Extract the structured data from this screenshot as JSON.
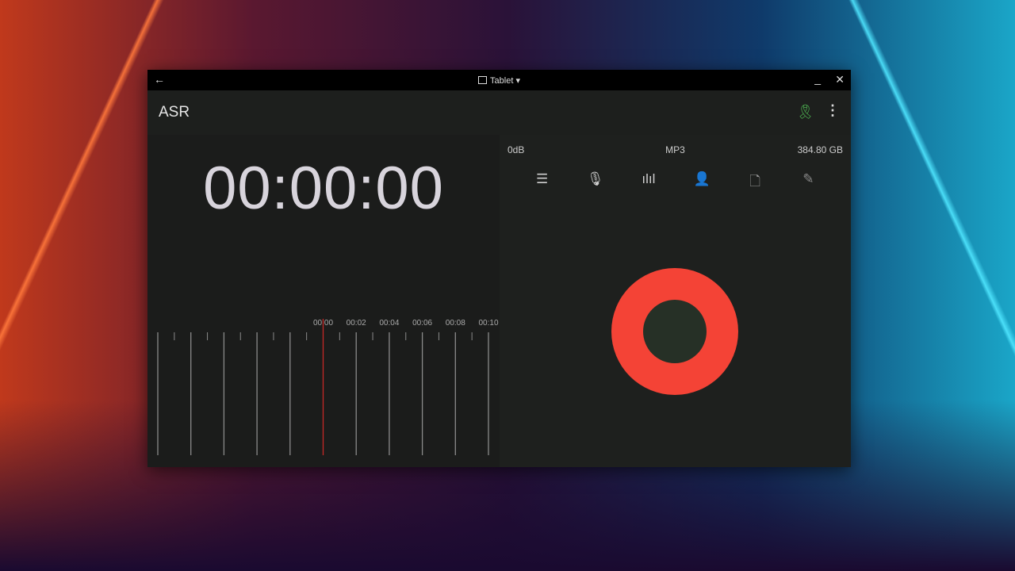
{
  "window": {
    "title": "Tablet",
    "back_icon": "arrow-left-icon",
    "device_icon": "tablet-icon",
    "dropdown_icon": "caret-down-icon"
  },
  "appbar": {
    "title": "ASR",
    "badge_icon": "award-icon",
    "menu_icon": "more-vert-icon",
    "badge_color": "#4caf50"
  },
  "timer": "00:00:00",
  "timeline": {
    "labels": [
      "00:00",
      "00:02",
      "00:04",
      "00:06",
      "00:08",
      "00:10"
    ],
    "playhead_color": "#c62828"
  },
  "status": {
    "level": "0dB",
    "format": "MP3",
    "free_space": "384.80 GB"
  },
  "toolbar": [
    {
      "icon": "list-icon"
    },
    {
      "icon": "microphone-icon"
    },
    {
      "icon": "waveform-icon"
    },
    {
      "icon": "person-settings-icon"
    },
    {
      "icon": "add-file-icon"
    },
    {
      "icon": "edit-pencil-icon"
    }
  ],
  "record_button": {
    "icon": "record-icon",
    "color": "#f44336"
  }
}
